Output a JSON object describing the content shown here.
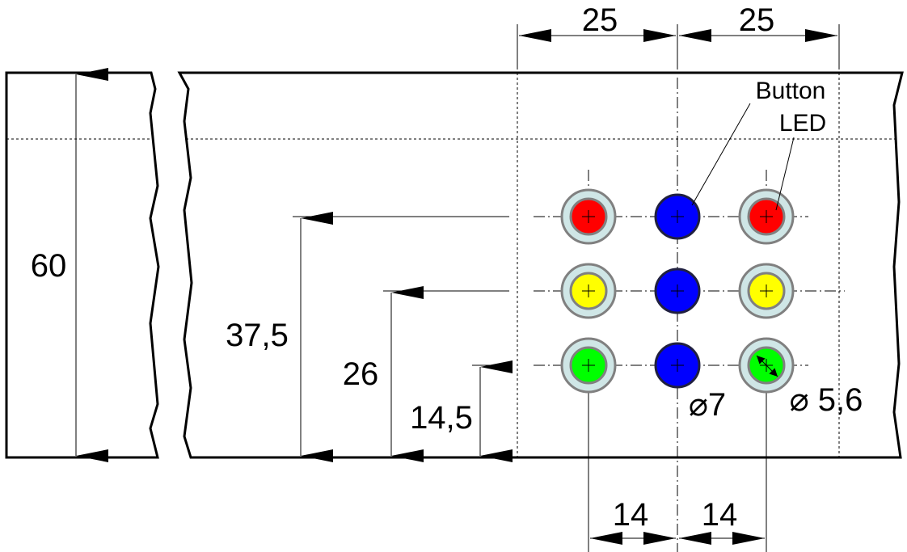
{
  "dimensions": {
    "top_left_spacing": "25",
    "top_right_spacing": "25",
    "panel_height": "60",
    "row_top_height": "37,5",
    "row_middle_height": "26",
    "row_bottom_height": "14,5",
    "bottom_left_spacing": "14",
    "bottom_right_spacing": "14",
    "button_diameter": "⌀7",
    "led_diameter": "⌀ 5,6"
  },
  "callouts": {
    "button": "Button",
    "led": "LED"
  },
  "colors": {
    "red": "#ff0000",
    "yellow": "#ffff00",
    "green": "#00ff00",
    "blue": "#0000ff",
    "bezel": "#cfe6e6",
    "bezel_stroke": "#808080",
    "button_rim": "#202040"
  },
  "grid": {
    "rows": [
      {
        "led_color": "red",
        "button_color": "blue"
      },
      {
        "led_color": "yellow",
        "button_color": "blue"
      },
      {
        "led_color": "green",
        "button_color": "blue"
      }
    ]
  }
}
